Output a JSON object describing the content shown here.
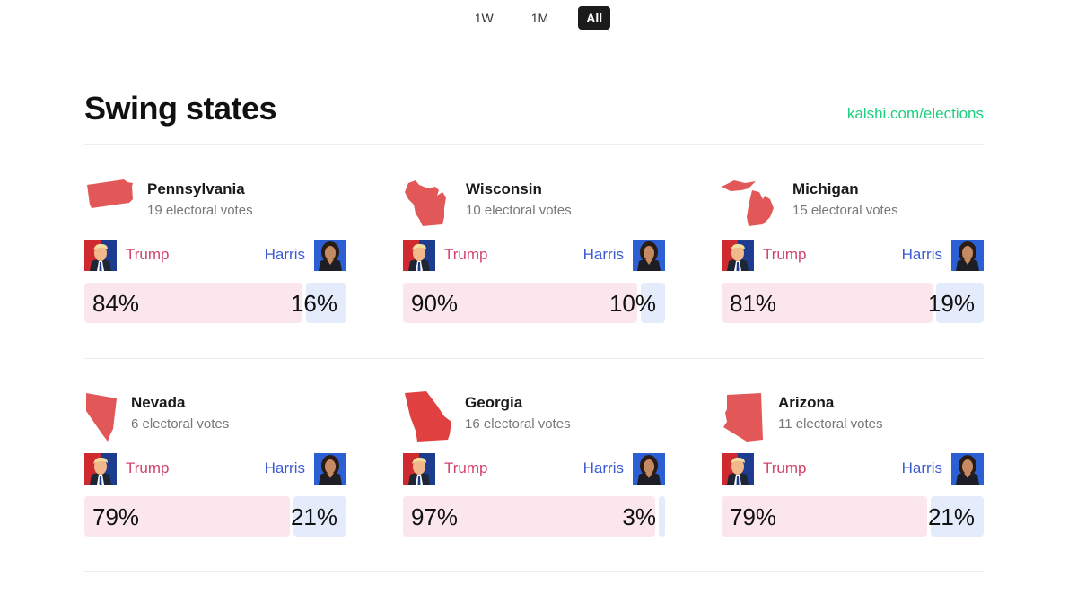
{
  "range_toggle": {
    "options": [
      "1W",
      "1M",
      "All"
    ],
    "selected": "All"
  },
  "header": {
    "title": "Swing states",
    "link": "kalshi.com/elections"
  },
  "colors": {
    "trump_text": "#d1436b",
    "harris_text": "#3b5bd1",
    "trump_bar": "#fbe6ee",
    "harris_bar": "#e4ebfb",
    "state_red": "#e25858",
    "link_green": "#1bcf7e"
  },
  "candidates": {
    "trump": "Trump",
    "harris": "Harris"
  },
  "states": [
    {
      "name": "Pennsylvania",
      "votes": "19 electoral votes",
      "trump_pct": 84,
      "harris_pct": 16,
      "trump_label": "84%",
      "harris_label": "16%",
      "icon": "pennsylvania-map-icon"
    },
    {
      "name": "Wisconsin",
      "votes": "10 electoral votes",
      "trump_pct": 90,
      "harris_pct": 10,
      "trump_label": "90%",
      "harris_label": "10%",
      "icon": "wisconsin-map-icon"
    },
    {
      "name": "Michigan",
      "votes": "15 electoral votes",
      "trump_pct": 81,
      "harris_pct": 19,
      "trump_label": "81%",
      "harris_label": "19%",
      "icon": "michigan-map-icon"
    },
    {
      "name": "Nevada",
      "votes": "6 electoral votes",
      "trump_pct": 79,
      "harris_pct": 21,
      "trump_label": "79%",
      "harris_label": "21%",
      "icon": "nevada-map-icon"
    },
    {
      "name": "Georgia",
      "votes": "16 electoral votes",
      "trump_pct": 97,
      "harris_pct": 3,
      "trump_label": "97%",
      "harris_label": "3%",
      "icon": "georgia-map-icon"
    },
    {
      "name": "Arizona",
      "votes": "11 electoral votes",
      "trump_pct": 79,
      "harris_pct": 21,
      "trump_label": "79%",
      "harris_label": "21%",
      "icon": "arizona-map-icon"
    }
  ]
}
